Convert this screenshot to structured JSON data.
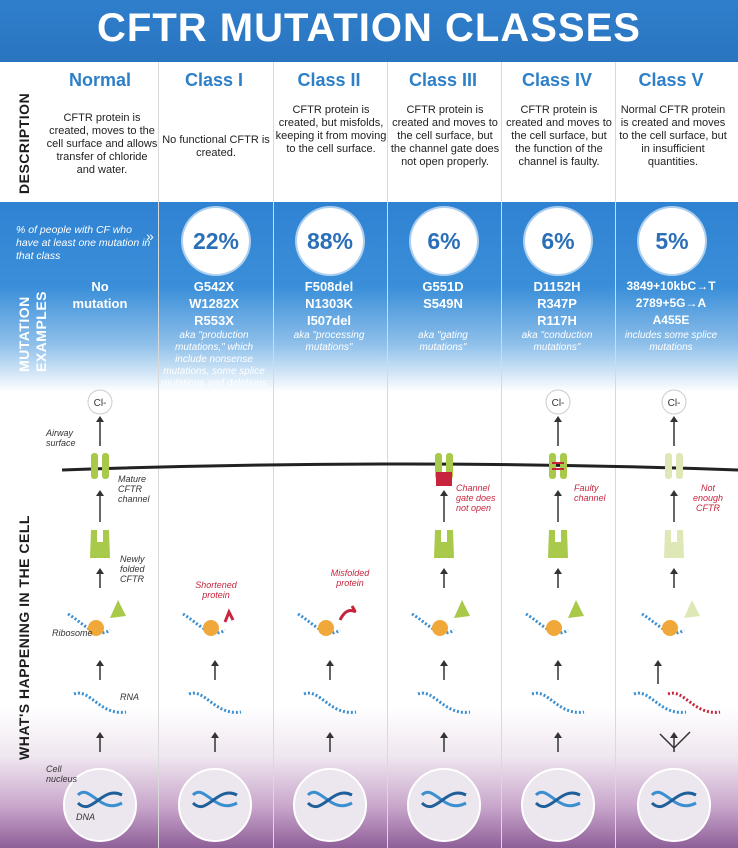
{
  "title": "CFTR MUTATION CLASSES",
  "side_labels": {
    "description": "DESCRIPTION",
    "mutation_examples_1": "MUTATION",
    "mutation_examples_2": "EXAMPLES",
    "whats_happening": "WHAT'S HAPPENING IN THE CELL"
  },
  "percent_note": "% of people with CF who have at least one mutation in that class",
  "columns": [
    {
      "name": "Normal",
      "description": "CFTR protein is created, moves to the cell surface and allows transfer of chloride and water.",
      "percent": "",
      "mutations": [
        "No",
        "mutation"
      ],
      "aka": ""
    },
    {
      "name": "Class I",
      "description": "No functional CFTR is created.",
      "percent": "22%",
      "mutations": [
        "G542X",
        "W1282X",
        "R553X"
      ],
      "aka": "aka \"production mutations,\" which include nonsense mutations, some splice mutations and deletions"
    },
    {
      "name": "Class II",
      "description": "CFTR protein is created, but misfolds, keeping it from moving to the cell surface.",
      "percent": "88%",
      "mutations": [
        "F508del",
        "N1303K",
        "I507del"
      ],
      "aka": "aka \"processing mutations\""
    },
    {
      "name": "Class III",
      "description": "CFTR protein is created and moves to the cell surface, but the channel gate does not open properly.",
      "percent": "6%",
      "mutations": [
        "G551D",
        "S549N"
      ],
      "aka": "aka \"gating mutations\""
    },
    {
      "name": "Class IV",
      "description": "CFTR protein is created and moves to the cell surface, but the function of the channel is faulty.",
      "percent": "6%",
      "mutations": [
        "D1152H",
        "R347P",
        "R117H"
      ],
      "aka": "aka \"conduction mutations\""
    },
    {
      "name": "Class V",
      "description": "Normal CFTR protein is created and moves to the cell surface, but in insufficient quantities.",
      "percent": "5%",
      "mutations": [
        "3849+10kbC→T",
        "2789+5G→A",
        "A455E"
      ],
      "aka": "includes some splice mutations"
    }
  ],
  "cell_labels": {
    "chloride": "Cl-",
    "airway_surface": "Airway surface",
    "mature_cftr": "Mature CFTR channel",
    "newly_folded": "Newly folded CFTR",
    "ribosome": "Ribosome",
    "rna": "RNA",
    "cell_nucleus": "Cell nucleus",
    "dna": "DNA",
    "shortened": "Shortened protein",
    "misfolded": "Misfolded protein",
    "channel_gate": "Channel gate does not open",
    "faulty_channel": "Faulty channel",
    "not_enough": "Not enough CFTR"
  },
  "colors": {
    "header_blue": "#2f7fcc",
    "heading_blue": "#2d7fc8",
    "protein_green": "#a8c94a",
    "pale_green": "#dde8b6",
    "rna_blue": "#3a8fd0",
    "ribosome_orange": "#f0a83a",
    "defect_red": "#c7253e",
    "nucleus_purple": "#8e5f98"
  }
}
